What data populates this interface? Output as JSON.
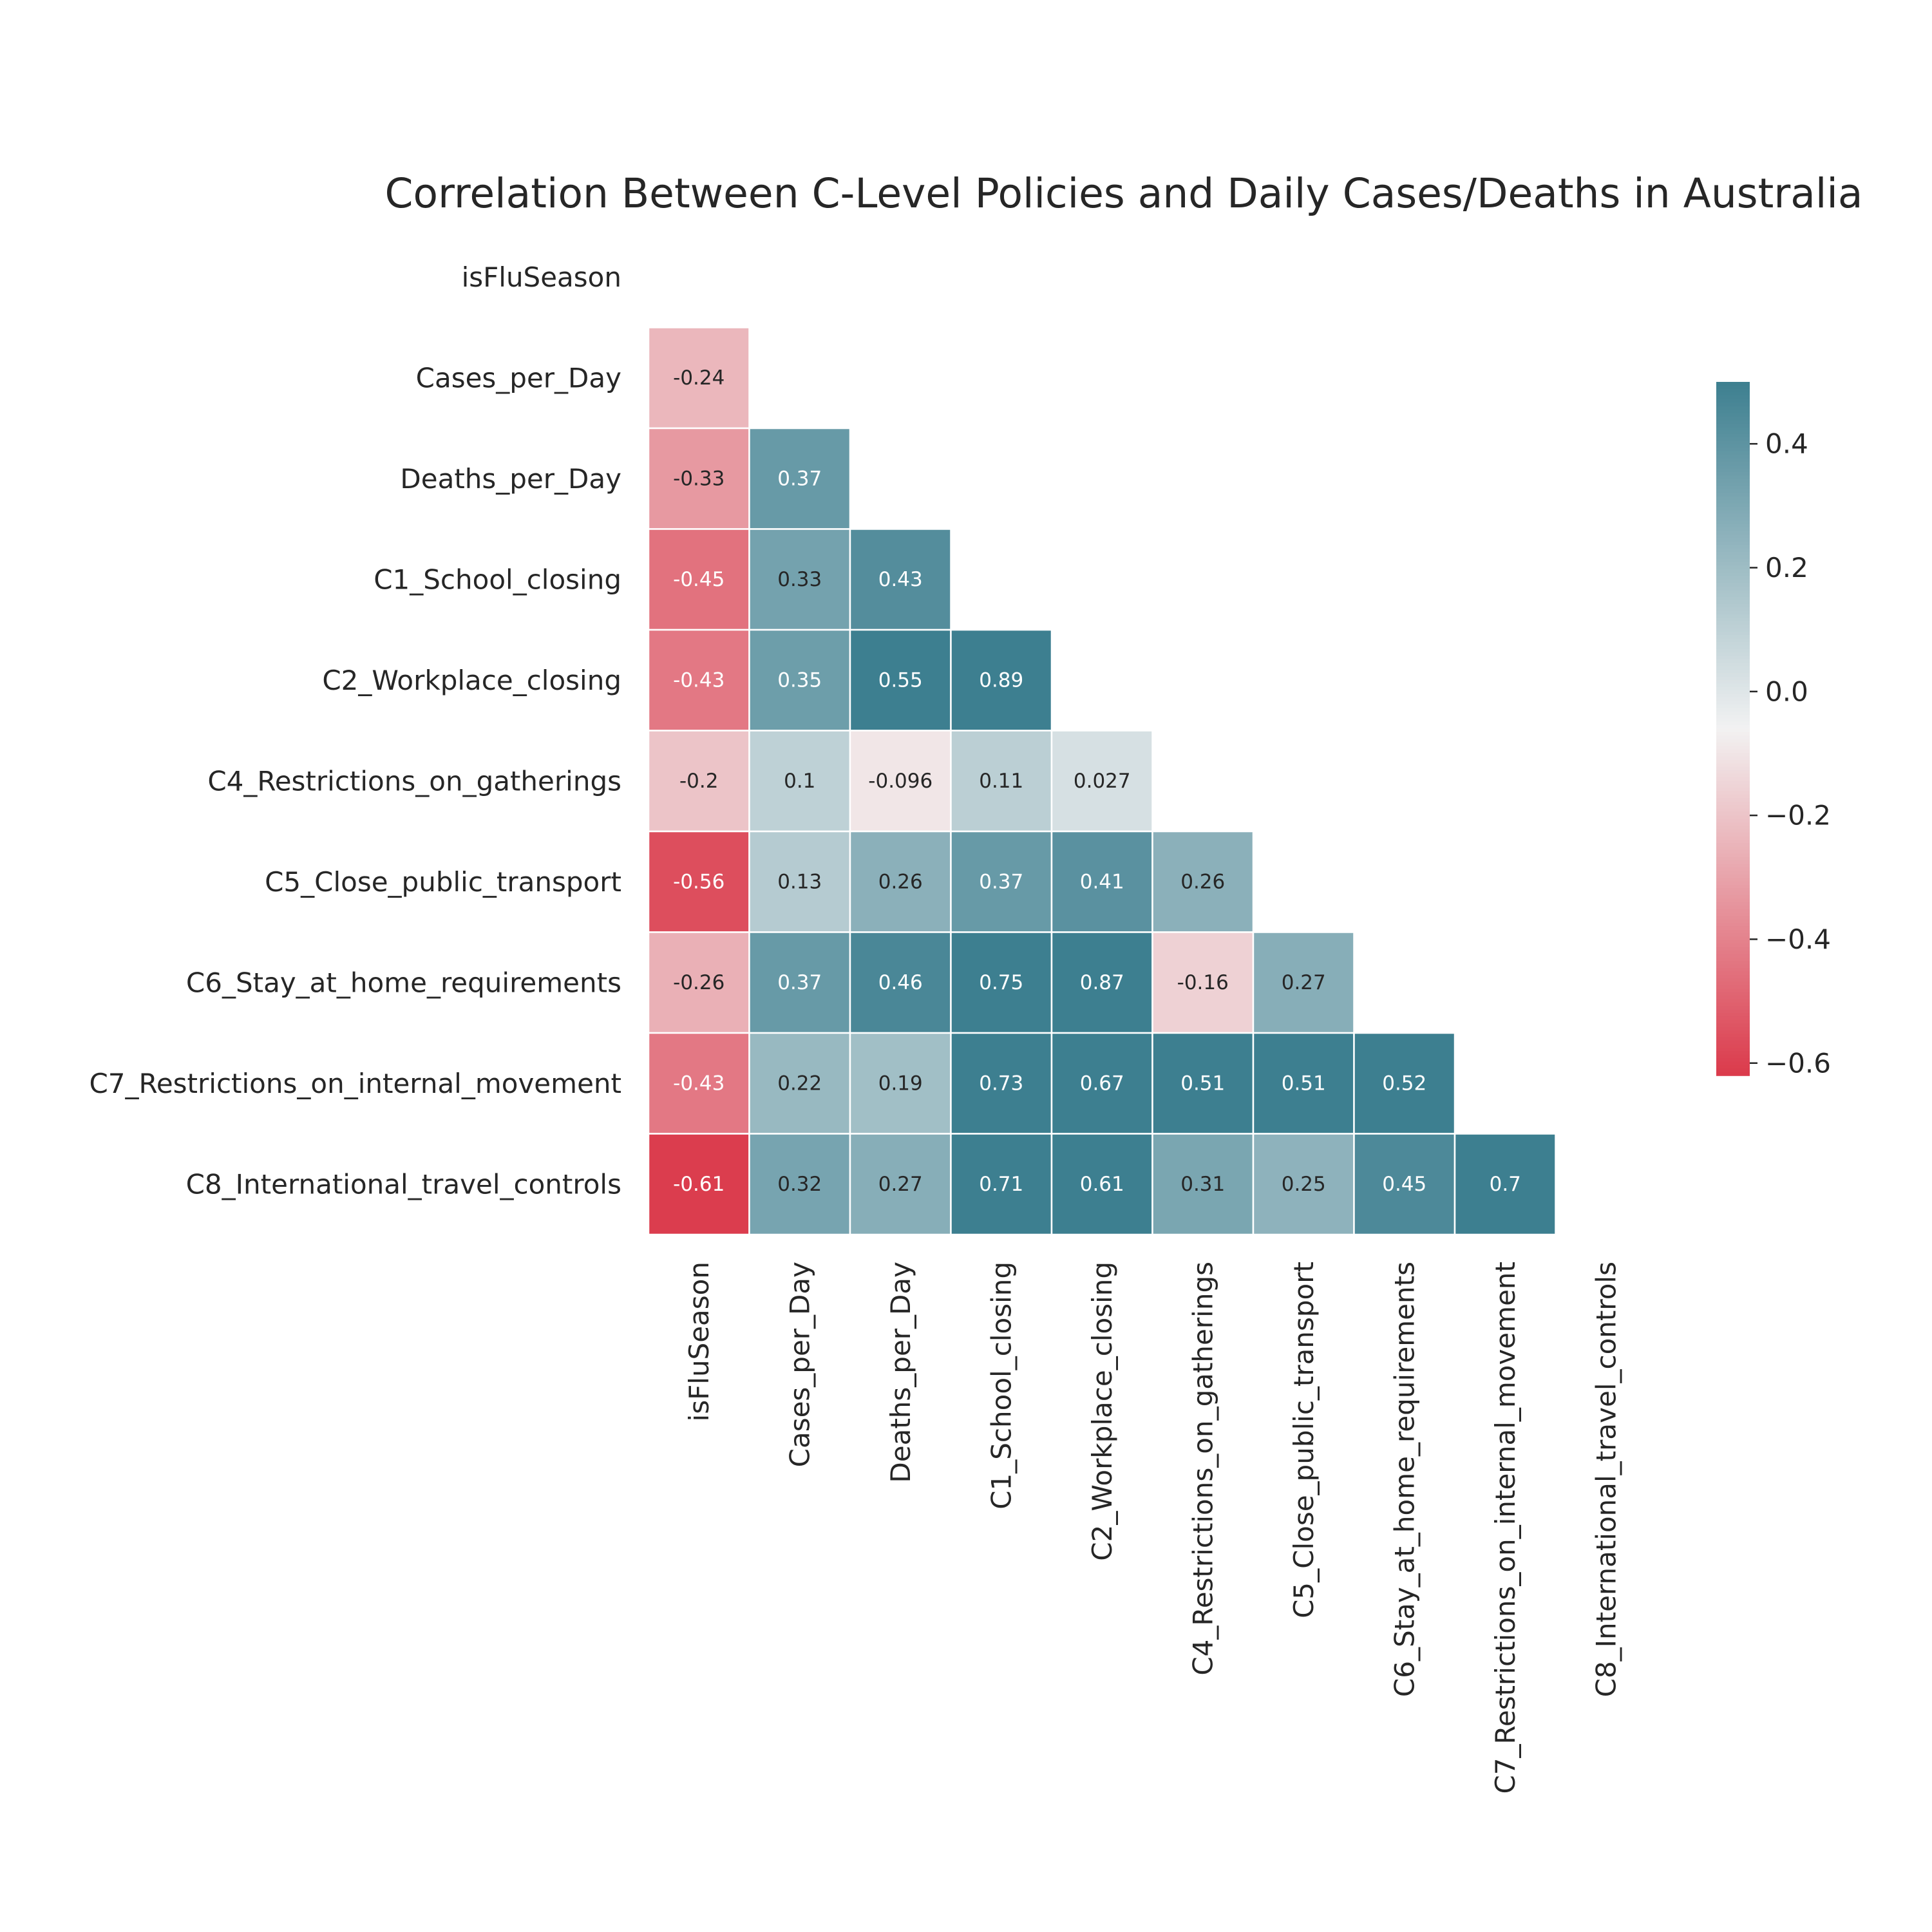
{
  "chart_data": {
    "type": "heatmap",
    "title": "Correlation Between C-Level Policies and Daily Cases/Deaths in Australia",
    "variables": [
      "isFluSeason",
      "Cases_per_Day",
      "Deaths_per_Day",
      "C1_School_closing",
      "C2_Workplace_closing",
      "C4_Restrictions_on_gatherings",
      "C5_Close_public_transport",
      "C6_Stay_at_home_requirements",
      "C7_Restrictions_on_internal_movement",
      "C8_International_travel_controls"
    ],
    "mask": "upper-triangle-including-diagonal",
    "matrix": [
      [
        null,
        null,
        null,
        null,
        null,
        null,
        null,
        null,
        null,
        null
      ],
      [
        "-0.24",
        null,
        null,
        null,
        null,
        null,
        null,
        null,
        null,
        null
      ],
      [
        "-0.33",
        "0.37",
        null,
        null,
        null,
        null,
        null,
        null,
        null,
        null
      ],
      [
        "-0.45",
        "0.33",
        "0.43",
        null,
        null,
        null,
        null,
        null,
        null,
        null
      ],
      [
        "-0.43",
        "0.35",
        "0.55",
        "0.89",
        null,
        null,
        null,
        null,
        null,
        null
      ],
      [
        "-0.2",
        "0.1",
        "-0.096",
        "0.11",
        "0.027",
        null,
        null,
        null,
        null,
        null
      ],
      [
        "-0.56",
        "0.13",
        "0.26",
        "0.37",
        "0.41",
        "0.26",
        null,
        null,
        null,
        null
      ],
      [
        "-0.26",
        "0.37",
        "0.46",
        "0.75",
        "0.87",
        "-0.16",
        "0.27",
        null,
        null,
        null
      ],
      [
        "-0.43",
        "0.22",
        "0.19",
        "0.73",
        "0.67",
        "0.51",
        "0.51",
        "0.52",
        null,
        null
      ],
      [
        "-0.61",
        "0.32",
        "0.27",
        "0.71",
        "0.61",
        "0.31",
        "0.25",
        "0.45",
        "0.7",
        null
      ]
    ],
    "colorbar": {
      "vmin": -0.62,
      "vmax": 0.5,
      "ticks": [
        0.4,
        0.2,
        0.0,
        -0.2,
        -0.4,
        -0.6
      ],
      "tick_labels": [
        "0.4",
        "0.2",
        "0.0",
        "−0.2",
        "−0.4",
        "−0.6"
      ]
    },
    "colors": {
      "negative": "#db3a4b",
      "center": "#f2f2f2",
      "positive": "#3d7f90"
    }
  }
}
